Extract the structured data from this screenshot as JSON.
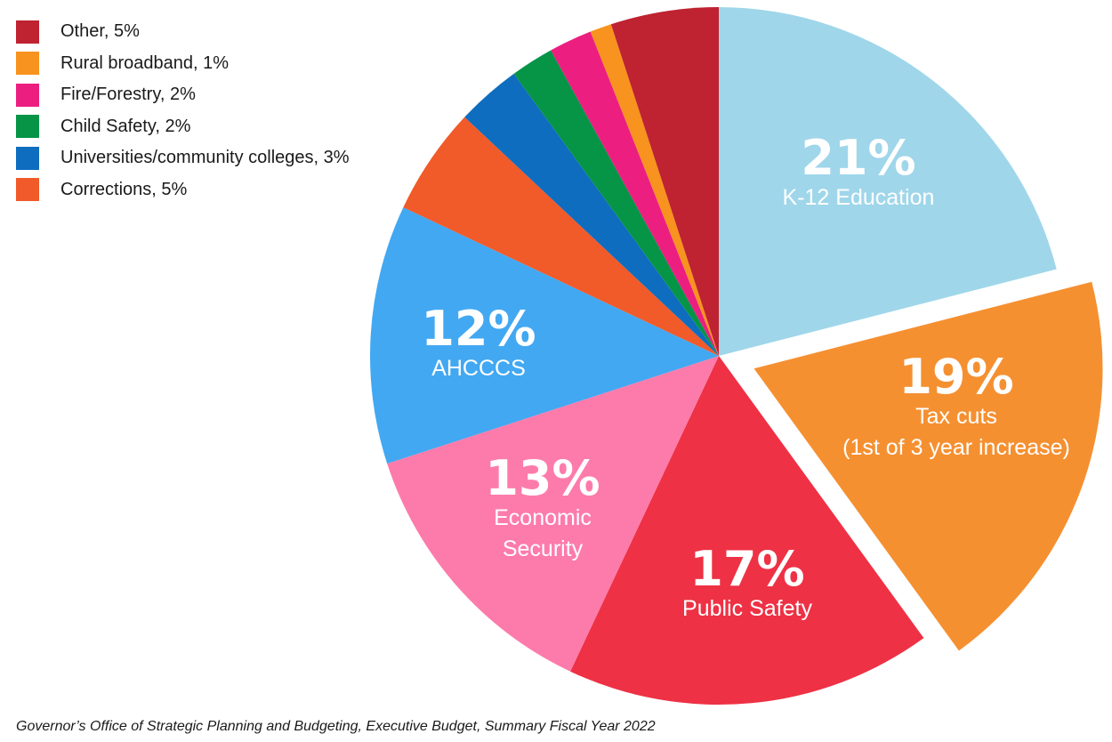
{
  "chart_data": {
    "type": "pie",
    "title": "",
    "slices": [
      {
        "label": "K-12 Education",
        "label_lines": [
          "K-12 Education"
        ],
        "value": 21,
        "pct_label": "21%",
        "color": "#9fd6ea",
        "exploded": false,
        "in_legend": false
      },
      {
        "label": "Tax cuts (1st of 3 year increase)",
        "label_lines": [
          "Tax cuts",
          "(1st of 3 year increase)"
        ],
        "value": 19,
        "pct_label": "19%",
        "color": "#f59031",
        "exploded": true,
        "in_legend": false
      },
      {
        "label": "Public Safety",
        "label_lines": [
          "Public Safety"
        ],
        "value": 17,
        "pct_label": "17%",
        "color": "#ee3144",
        "exploded": false,
        "in_legend": false
      },
      {
        "label": "Economic Security",
        "label_lines": [
          "Economic",
          "Security"
        ],
        "value": 13,
        "pct_label": "13%",
        "color": "#fd7bab",
        "exploded": false,
        "in_legend": false
      },
      {
        "label": "AHCCCS",
        "label_lines": [
          "AHCCCS"
        ],
        "value": 12,
        "pct_label": "12%",
        "color": "#42a8f2",
        "exploded": false,
        "in_legend": false
      },
      {
        "label": "Corrections",
        "value": 5,
        "color": "#f15a29",
        "exploded": false,
        "in_legend": true
      },
      {
        "label": "Universities/community colleges",
        "value": 3,
        "color": "#0e6dbf",
        "exploded": false,
        "in_legend": true
      },
      {
        "label": "Child Safety",
        "value": 2,
        "color": "#069447",
        "exploded": false,
        "in_legend": true
      },
      {
        "label": "Fire/Forestry",
        "value": 2,
        "color": "#ec1f80",
        "exploded": false,
        "in_legend": true
      },
      {
        "label": "Rural broadband",
        "value": 1,
        "color": "#f7931e",
        "exploded": false,
        "in_legend": true
      },
      {
        "label": "Other",
        "value": 5,
        "color": "#bf2230",
        "exploded": false,
        "in_legend": true
      }
    ],
    "legend": {
      "placement": "top-left",
      "items": [
        {
          "label": "Other, 5%",
          "color": "#bf2230"
        },
        {
          "label": "Rural broadband, 1%",
          "color": "#f7931e"
        },
        {
          "label": "Fire/Forestry, 2%",
          "color": "#ec1f80"
        },
        {
          "label": "Child Safety, 2%",
          "color": "#069447"
        },
        {
          "label": "Universities/community colleges, 3%",
          "color": "#0e6dbf"
        },
        {
          "label": "Corrections, 5%",
          "color": "#f15a29"
        }
      ]
    }
  },
  "source": "Governor’s Office of Strategic Planning and Budgeting, Executive Budget, Summary Fiscal Year 2022"
}
